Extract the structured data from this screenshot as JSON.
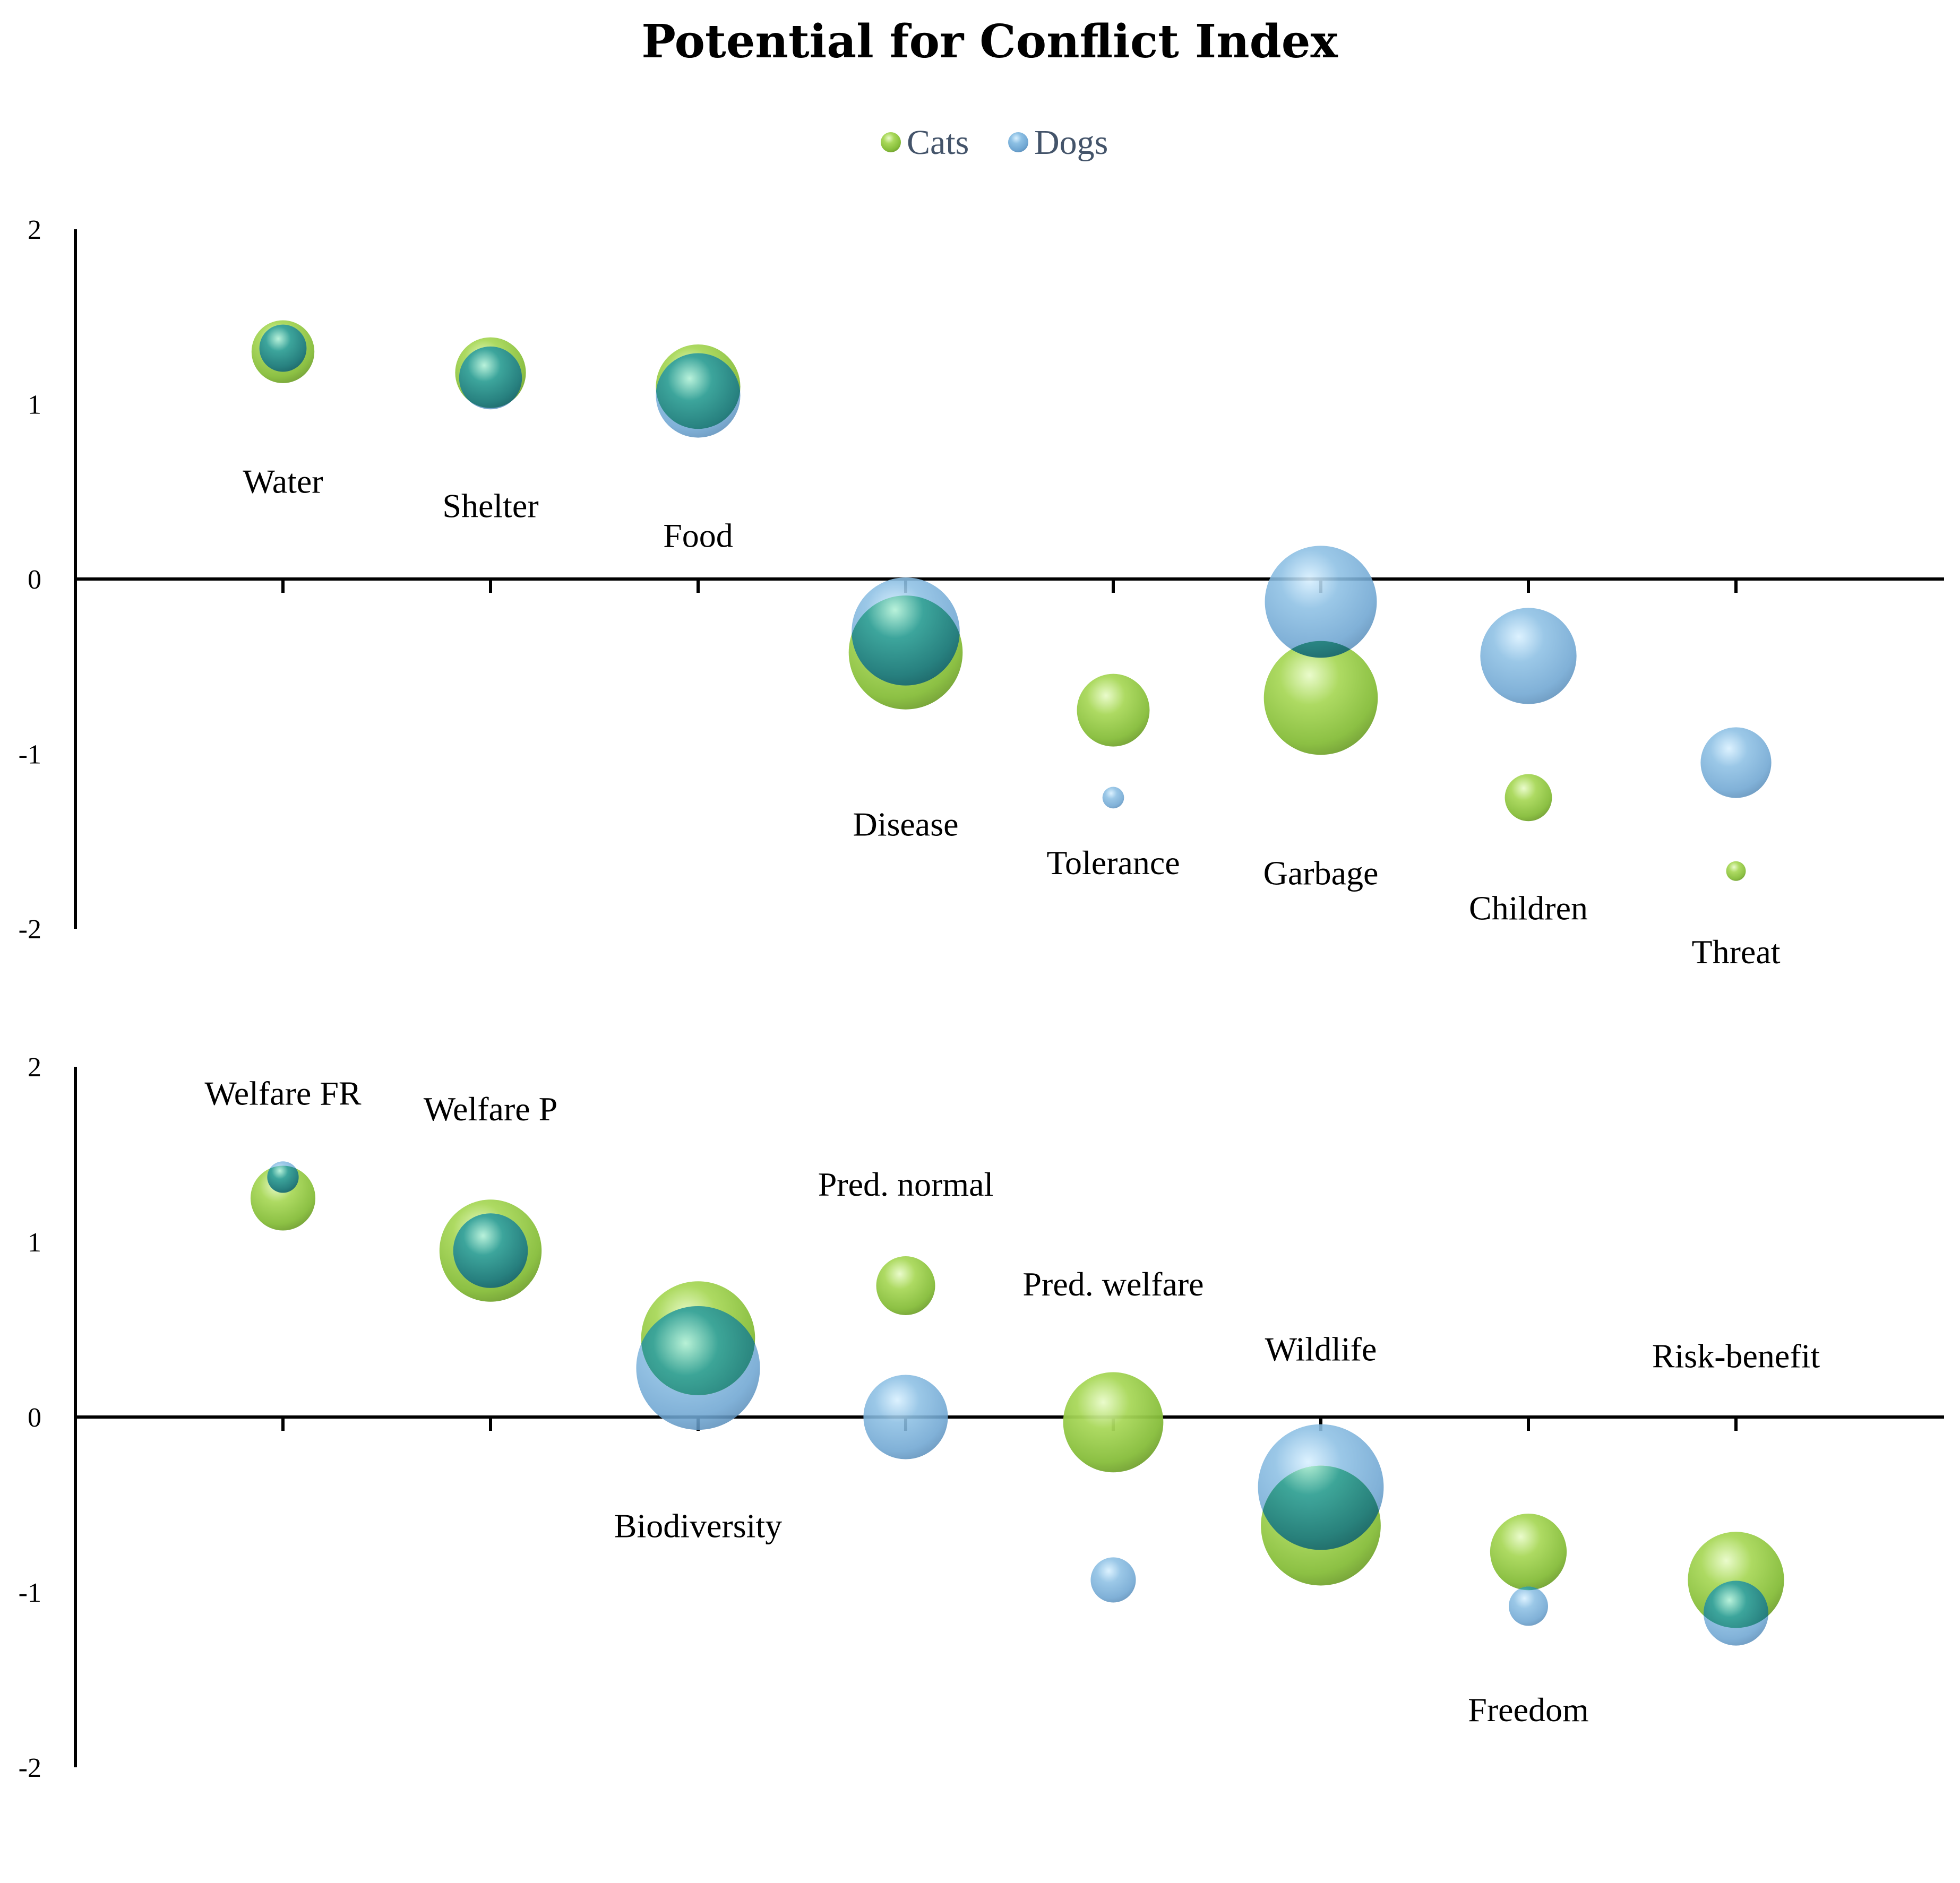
{
  "chart_data": {
    "type": "bubble",
    "title": "Potential for Conflict Index",
    "legend": {
      "position": "top-center",
      "entries": [
        {
          "name": "Cats",
          "color": "#8DC63F"
        },
        {
          "name": "Dogs",
          "color": "#7FB2D9"
        }
      ]
    },
    "colors": {
      "cats": "#8DC63F",
      "dogs": "#7FB2D9",
      "overlap": "#2E8F8A"
    },
    "panels": [
      {
        "id": "top",
        "ylim": [
          -2,
          2
        ],
        "yticks": [
          "2",
          "1",
          "0",
          "-1",
          "-2"
        ],
        "categories": [
          {
            "label": "Water",
            "x": 1,
            "label_y": 0.56,
            "cats": {
              "y": 1.3,
              "size": 0.32
            },
            "dogs": {
              "y": 1.32,
              "size": 0.24
            }
          },
          {
            "label": "Shelter",
            "x": 2,
            "label_y": 0.42,
            "cats": {
              "y": 1.18,
              "size": 0.36
            },
            "dogs": {
              "y": 1.15,
              "size": 0.32
            }
          },
          {
            "label": "Food",
            "x": 3,
            "label_y": 0.25,
            "cats": {
              "y": 1.1,
              "size": 0.43
            },
            "dogs": {
              "y": 1.05,
              "size": 0.43
            }
          },
          {
            "label": "Disease",
            "x": 4,
            "label_y": -1.4,
            "cats": {
              "y": -0.42,
              "size": 0.58
            },
            "dogs": {
              "y": -0.3,
              "size": 0.55
            }
          },
          {
            "label": "Tolerance",
            "x": 5,
            "label_y": -1.62,
            "cats": {
              "y": -0.75,
              "size": 0.37
            },
            "dogs": {
              "y": -1.25,
              "size": 0.11
            }
          },
          {
            "label": "Garbage",
            "x": 6,
            "label_y": -1.68,
            "cats": {
              "y": -0.68,
              "size": 0.58
            },
            "dogs": {
              "y": -0.13,
              "size": 0.57
            }
          },
          {
            "label": "Children",
            "x": 7,
            "label_y": -1.88,
            "cats": {
              "y": -1.25,
              "size": 0.24
            },
            "dogs": {
              "y": -0.44,
              "size": 0.49
            }
          },
          {
            "label": "Threat",
            "x": 8,
            "label_y": -2.13,
            "cats": {
              "y": -1.67,
              "size": 0.1
            },
            "dogs": {
              "y": -1.05,
              "size": 0.36
            }
          }
        ]
      },
      {
        "id": "bottom",
        "ylim": [
          -2,
          2
        ],
        "yticks": [
          "2",
          "1",
          "0",
          "-1",
          "-2"
        ],
        "categories": [
          {
            "label": "Welfare FR",
            "x": 1,
            "label_y": 1.85,
            "cats": {
              "y": 1.25,
              "size": 0.33
            },
            "dogs": {
              "y": 1.37,
              "size": 0.16
            }
          },
          {
            "label": "Welfare P",
            "x": 2,
            "label_y": 1.76,
            "cats": {
              "y": 0.95,
              "size": 0.52
            },
            "dogs": {
              "y": 0.95,
              "size": 0.38
            }
          },
          {
            "label": "Biodiversity",
            "x": 3,
            "label_y": -0.62,
            "cats": {
              "y": 0.45,
              "size": 0.58
            },
            "dogs": {
              "y": 0.28,
              "size": 0.63
            }
          },
          {
            "label": "Pred. normal",
            "x": 4,
            "label_y": 1.33,
            "cats": {
              "y": 0.75,
              "size": 0.3
            },
            "dogs": {
              "y": 0.0,
              "size": 0.43
            }
          },
          {
            "label": "Pred. welfare",
            "x": 5,
            "label_y": 0.76,
            "cats": {
              "y": -0.03,
              "size": 0.51
            },
            "dogs": {
              "y": -0.93,
              "size": 0.23
            }
          },
          {
            "label": "Wildlife",
            "x": 6,
            "label_y": 0.39,
            "cats": {
              "y": -0.62,
              "size": 0.61
            },
            "dogs": {
              "y": -0.4,
              "size": 0.64
            }
          },
          {
            "label": "Freedom",
            "x": 7,
            "label_y": -1.67,
            "cats": {
              "y": -0.77,
              "size": 0.39
            },
            "dogs": {
              "y": -1.08,
              "size": 0.2
            }
          },
          {
            "label": "Risk-benefit",
            "x": 8,
            "label_y": 0.35,
            "cats": {
              "y": -0.93,
              "size": 0.49
            },
            "dogs": {
              "y": -1.12,
              "size": 0.33
            }
          }
        ]
      }
    ]
  }
}
